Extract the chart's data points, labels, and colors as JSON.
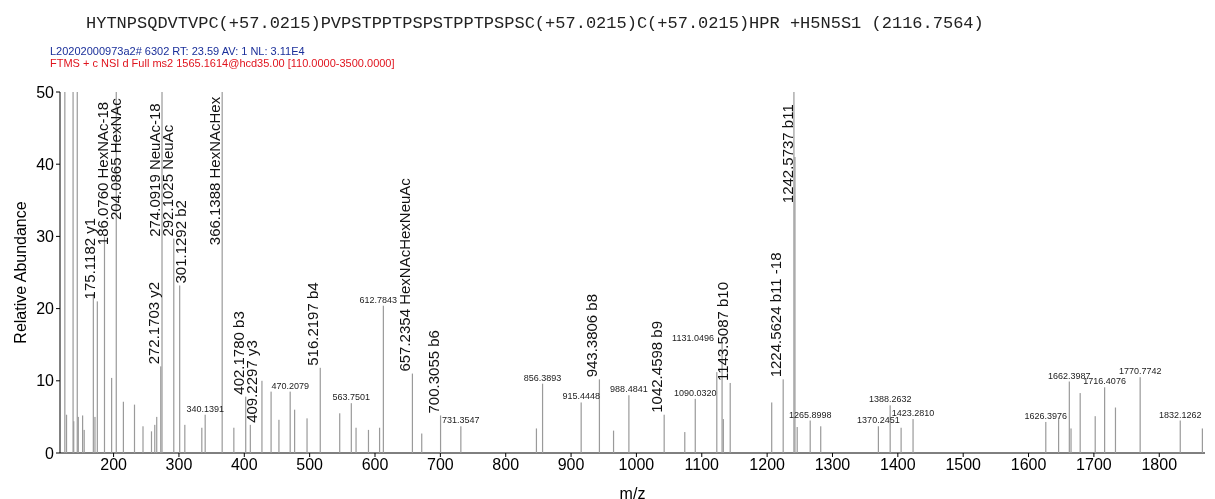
{
  "chart_data": {
    "type": "bar",
    "title": "HYTNPSQDVTVPC(+57.0215)PVPSTPPTPSPSTPPTPSPSC(+57.0215)C(+57.0215)HPR   +H5N5S1 (2116.7564)",
    "subtitle": "L20202000973a2#  6302 RT: 23.59 AV:  1  NL: 3.11E4",
    "xlabel": "m/z",
    "ylabel": "Relative Abundance",
    "color": "#9a9a9a",
    "xlim": [
      118,
      1870
    ],
    "ylim": [
      0,
      50
    ],
    "xticks": [
      200,
      300,
      400,
      500,
      600,
      700,
      800,
      900,
      1000,
      1100,
      1200,
      1300,
      1400,
      1500,
      1600,
      1700,
      1800
    ],
    "yticks": [
      0,
      10,
      20,
      30,
      40,
      50
    ],
    "x": [
      125.4,
      128,
      138,
      139,
      144.4,
      146,
      152.6,
      155,
      169,
      171.5,
      175.1182,
      186.076,
      197,
      204.0865,
      215,
      232,
      245,
      258,
      263,
      266,
      272.1703,
      274.0919,
      292.1025,
      301.1292,
      309,
      335,
      340.1391,
      366.1388,
      384,
      402.178,
      409.2297,
      427,
      441,
      453,
      470.2079,
      477,
      496,
      516.2197,
      546,
      563.7501,
      571,
      590,
      607,
      612.7843,
      657.2354,
      671.5,
      700.3055,
      731.3547,
      847,
      856.3893,
      915.4448,
      943.3806,
      965,
      988.4841,
      1042.4598,
      1074,
      1090.032,
      1123,
      1131.0496,
      1133,
      1143.5087,
      1207,
      1224.5624,
      1241,
      1242.5737,
      1246,
      1265.8998,
      1282,
      1370.2451,
      1388.2632,
      1405,
      1423.281,
      1626.3976,
      1646,
      1662.3987,
      1665,
      1679,
      1702,
      1716.4076,
      1733,
      1770.7742,
      1832.1262,
      1866
    ],
    "values": [
      50,
      5.3,
      50,
      4.4,
      50,
      5,
      5.2,
      3.2,
      22,
      5,
      21,
      30,
      10.4,
      50,
      7.1,
      6.7,
      3.7,
      3,
      3.9,
      5,
      12,
      50,
      29.7,
      23.2,
      3.9,
      3.5,
      5.3,
      50,
      3.5,
      7.8,
      3.9,
      10,
      8.5,
      4.6,
      8.5,
      6,
      4.8,
      11.8,
      5.5,
      6.9,
      3.5,
      3.2,
      3.5,
      20.4,
      11,
      2.7,
      5.2,
      3.7,
      3.4,
      9.6,
      7,
      10.2,
      3.1,
      8,
      5.3,
      2.9,
      7.5,
      11.2,
      15.1,
      4.7,
      9.7,
      7,
      10.2,
      50,
      41,
      3.6,
      4.5,
      3.7,
      3.7,
      6.6,
      3.5,
      4.7,
      4.3,
      4.9,
      9.9,
      3.4,
      8.3,
      5.1,
      9.1,
      6.3,
      10.5,
      4.5,
      3.4
    ],
    "annotations": [
      "FTMS + c NSI d Full ms2 1565.1614@hcd35.00 [110.0000-3500.0000]",
      {
        "text": "175.1182 y1",
        "x": 175.1182,
        "y": 21
      },
      {
        "text": "186.0760 HexNAc-18",
        "x": 186.076,
        "y": 30
      },
      {
        "text": "204.0865 HexNAc",
        "x": 204.0865,
        "y": 50
      },
      {
        "text": "272.1703 y2",
        "x": 272.1703,
        "y": 12
      },
      {
        "text": "274.0919 NeuAc-18",
        "x": 274.0919,
        "y": 50
      },
      {
        "text": "292.1025 NeuAc",
        "x": 292.1025,
        "y": 29.7
      },
      {
        "text": "301.1292 b2",
        "x": 301.1292,
        "y": 23.2
      },
      {
        "text": "366.1388 HexNAcHex",
        "x": 366.1388,
        "y": 50
      },
      {
        "text": "402.1780 b3",
        "x": 402.178,
        "y": 7.8
      },
      {
        "text": "409.2297 y3",
        "x": 409.2297,
        "y": 3.9
      },
      {
        "text": "516.2197 b4",
        "x": 516.2197,
        "y": 11.8
      },
      {
        "text": "657.2354 HexNAcHexNeuAc",
        "x": 657.2354,
        "y": 11
      },
      {
        "text": "700.3055 b6",
        "x": 700.3055,
        "y": 5.2
      },
      {
        "text": "943.3806 b8",
        "x": 943.3806,
        "y": 10.2
      },
      {
        "text": "1042.4598 b9",
        "x": 1042.4598,
        "y": 5.3
      },
      {
        "text": "1143.5087 b10",
        "x": 1143.5087,
        "y": 9.7
      },
      {
        "text": "1224.5624 b11 -18",
        "x": 1224.5624,
        "y": 10.2
      },
      {
        "text": "1242.5737 b11",
        "x": 1242.5737,
        "y": 41
      },
      {
        "text": "340.1391",
        "x": 340.1391,
        "y": 5.3
      },
      {
        "text": "470.2079",
        "x": 470.2079,
        "y": 8.5
      },
      {
        "text": "563.7501",
        "x": 563.7501,
        "y": 6.9
      },
      {
        "text": "612.7843",
        "x": 612.7843,
        "y": 20.4
      },
      {
        "text": "731.3547",
        "x": 731.3547,
        "y": 3.7
      },
      {
        "text": "856.3893",
        "x": 856.3893,
        "y": 9.6
      },
      {
        "text": "915.4448",
        "x": 915.4448,
        "y": 7
      },
      {
        "text": "988.4841",
        "x": 988.4841,
        "y": 8
      },
      {
        "text": "1090.0320",
        "x": 1090.032,
        "y": 7.5
      },
      {
        "text": "1131.0496",
        "x": 1131.0496,
        "y": 15.1
      },
      {
        "text": "1265.8998",
        "x": 1265.8998,
        "y": 4.5
      },
      {
        "text": "1370.2451",
        "x": 1370.2451,
        "y": 3.7
      },
      {
        "text": "1388.2632",
        "x": 1388.2632,
        "y": 6.6
      },
      {
        "text": "1423.2810",
        "x": 1423.281,
        "y": 4.7
      },
      {
        "text": "1626.3976",
        "x": 1626.3976,
        "y": 4.3
      },
      {
        "text": "1662.3987",
        "x": 1662.3987,
        "y": 9.9
      },
      {
        "text": "1716.4076",
        "x": 1716.4076,
        "y": 9.1
      },
      {
        "text": "1770.7742",
        "x": 1770.7742,
        "y": 10.5
      },
      {
        "text": "1832.1262",
        "x": 1832.1262,
        "y": 4.5
      }
    ]
  }
}
